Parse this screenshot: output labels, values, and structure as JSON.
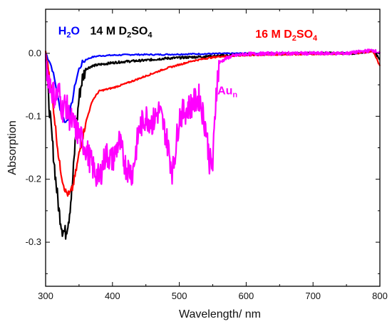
{
  "chart_data": {
    "type": "line",
    "xlabel": "Wavelength/ nm",
    "ylabel": "Absorption",
    "xlim": [
      300,
      800
    ],
    "ylim": [
      -0.37,
      0.07
    ],
    "x_ticks": [
      300,
      400,
      500,
      600,
      700,
      800
    ],
    "x_tick_labels": [
      "300",
      "400",
      "500",
      "600",
      "700",
      "800"
    ],
    "y_ticks": [
      0.0,
      -0.1,
      -0.2,
      -0.3
    ],
    "y_tick_labels": [
      "0.0",
      "-0.1",
      "-0.2",
      "-0.3"
    ],
    "grid": false,
    "series": [
      {
        "color": "#0000ff",
        "x": [
          300,
          305,
          310,
          315,
          320,
          325,
          330,
          335,
          340,
          345,
          350,
          355,
          360,
          370,
          380,
          400,
          430,
          470,
          520,
          600,
          700,
          760,
          790,
          800
        ],
        "y": [
          0.0,
          -0.01,
          -0.025,
          -0.05,
          -0.08,
          -0.1,
          -0.11,
          -0.1,
          -0.075,
          -0.045,
          -0.025,
          -0.015,
          -0.01,
          -0.006,
          -0.004,
          -0.003,
          -0.002,
          -0.002,
          -0.001,
          0.0,
          0.0,
          0.0,
          0.003,
          0.0
        ]
      },
      {
        "color": "#000000",
        "x": [
          300,
          305,
          310,
          315,
          320,
          325,
          330,
          335,
          340,
          345,
          350,
          355,
          360,
          370,
          380,
          400,
          420,
          450,
          480,
          520,
          560,
          600,
          700,
          760,
          790,
          800
        ],
        "y": [
          0.0,
          -0.08,
          -0.14,
          -0.2,
          -0.25,
          -0.28,
          -0.285,
          -0.26,
          -0.21,
          -0.13,
          -0.07,
          -0.04,
          -0.025,
          -0.02,
          -0.018,
          -0.015,
          -0.013,
          -0.011,
          -0.008,
          -0.006,
          -0.004,
          -0.002,
          0.0,
          0.0,
          0.004,
          -0.01
        ]
      },
      {
        "color": "#ff0000",
        "x": [
          300,
          305,
          310,
          315,
          320,
          325,
          330,
          335,
          340,
          345,
          350,
          360,
          370,
          380,
          400,
          420,
          440,
          460,
          480,
          500,
          520,
          540,
          560,
          600,
          650,
          700,
          760,
          790,
          800
        ],
        "y": [
          0.0,
          -0.03,
          -0.07,
          -0.12,
          -0.17,
          -0.2,
          -0.22,
          -0.225,
          -0.215,
          -0.19,
          -0.16,
          -0.11,
          -0.075,
          -0.06,
          -0.055,
          -0.048,
          -0.04,
          -0.032,
          -0.024,
          -0.018,
          -0.012,
          -0.008,
          -0.005,
          -0.003,
          -0.002,
          -0.001,
          0.0,
          0.003,
          -0.02
        ]
      },
      {
        "color": "#ff00ff",
        "x": [
          300,
          305,
          310,
          315,
          320,
          325,
          330,
          335,
          340,
          350,
          360,
          370,
          380,
          390,
          400,
          410,
          420,
          430,
          440,
          450,
          460,
          470,
          480,
          490,
          500,
          510,
          520,
          530,
          540,
          545,
          550,
          555,
          560,
          570,
          580,
          600,
          650,
          700,
          750,
          790,
          800
        ],
        "y": [
          -0.02,
          -0.04,
          -0.06,
          -0.07,
          -0.06,
          -0.09,
          -0.08,
          -0.1,
          -0.11,
          -0.13,
          -0.15,
          -0.18,
          -0.2,
          -0.16,
          -0.17,
          -0.14,
          -0.18,
          -0.19,
          -0.12,
          -0.1,
          -0.11,
          -0.09,
          -0.13,
          -0.19,
          -0.1,
          -0.09,
          -0.08,
          -0.07,
          -0.12,
          -0.17,
          -0.18,
          -0.06,
          -0.015,
          -0.008,
          -0.004,
          -0.001,
          0.0,
          0.0,
          0.0,
          0.005,
          0.0
        ]
      }
    ],
    "annotations": [
      {
        "text": "H",
        "sub": "2",
        "tail": "O",
        "color": "#0000ff",
        "x": 335,
        "y": 0.03
      },
      {
        "text": "14 M D",
        "sub": "2",
        "tail": "SO",
        "sub2": "4",
        "color": "#000000",
        "x": 413,
        "y": 0.03
      },
      {
        "text": "16 M D",
        "sub": "2",
        "tail": "SO",
        "sub2": "4",
        "color": "#ff0000",
        "x": 660,
        "y": 0.025
      },
      {
        "text": "Au",
        "sub": "n",
        "tail": "",
        "color": "#ff00ff",
        "x": 572,
        "y": -0.065
      }
    ]
  }
}
